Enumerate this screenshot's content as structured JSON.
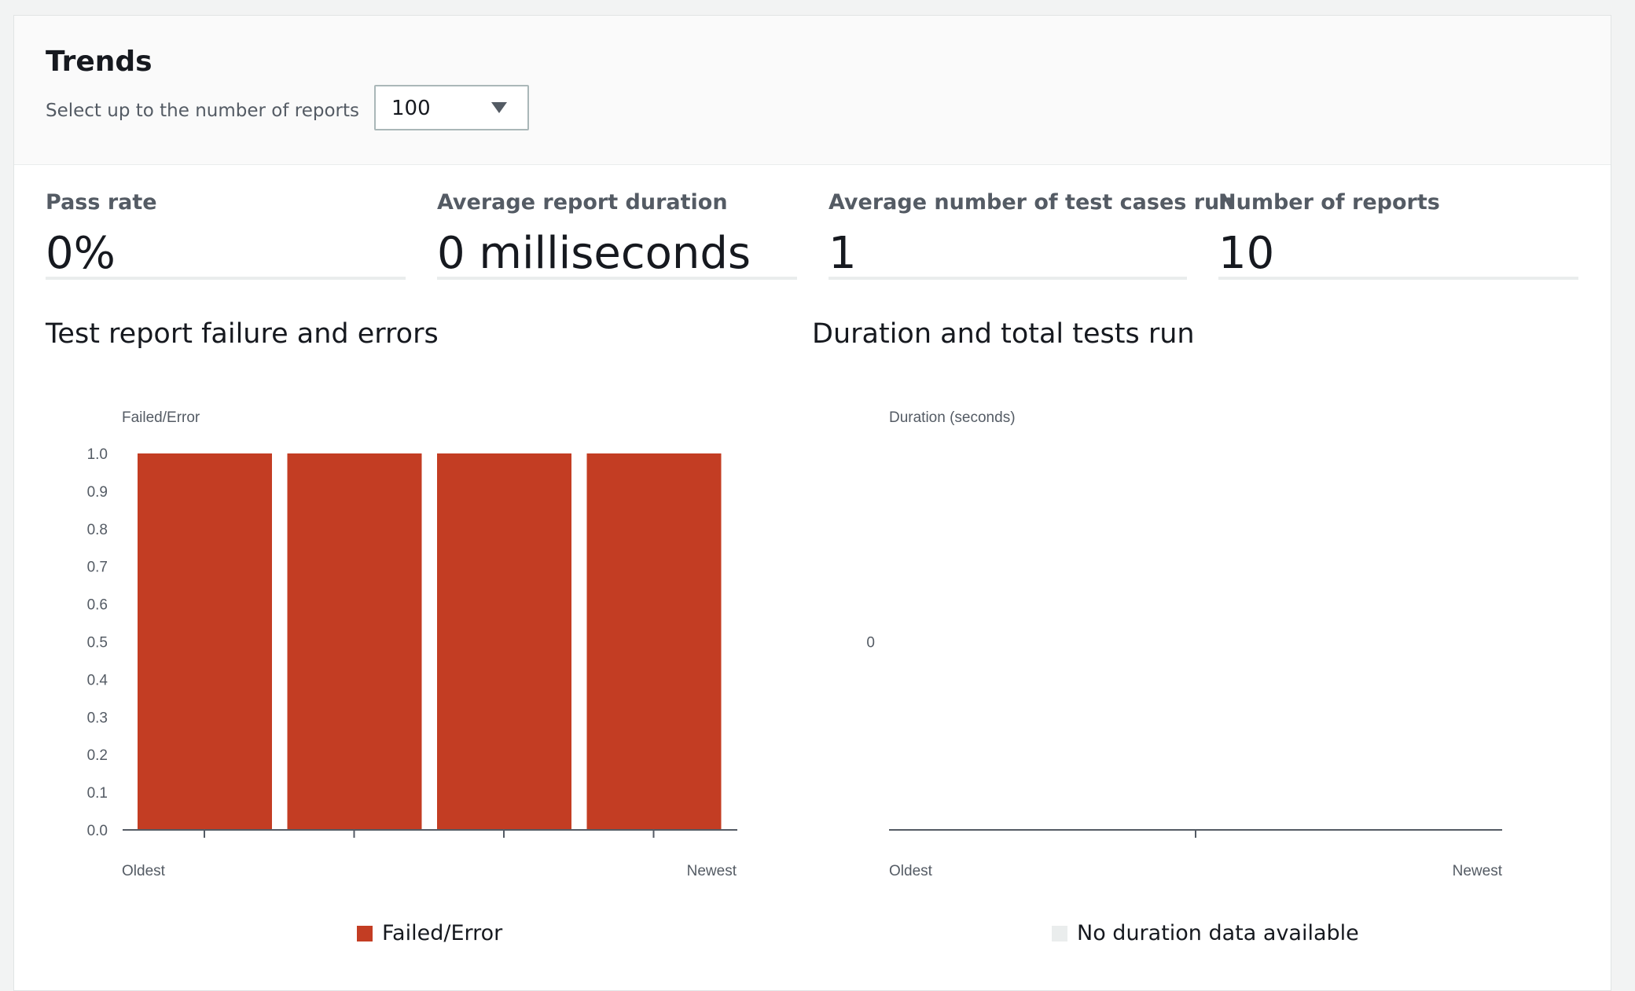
{
  "trends": {
    "title": "Trends",
    "select_label": "Select up to the number of reports",
    "select_value": "100"
  },
  "metrics": [
    {
      "label": "Pass rate",
      "value": "0%"
    },
    {
      "label": "Average report duration",
      "value": "0 milliseconds"
    },
    {
      "label": "Average number of test cases run",
      "value": "1"
    },
    {
      "label": "Number of reports",
      "value": "10"
    }
  ],
  "icons": {
    "select_caret": "caret-down-icon"
  },
  "colors": {
    "failed_error": "#c33d23",
    "no_data": "#eaeded"
  },
  "chart_data": [
    {
      "type": "bar",
      "title": "Test report failure and errors",
      "ylabel": "Failed/Error",
      "ylim": [
        0,
        1.0
      ],
      "yticks": [
        "0.0",
        "0.1",
        "0.2",
        "0.3",
        "0.4",
        "0.5",
        "0.6",
        "0.7",
        "0.8",
        "0.9",
        "1.0"
      ],
      "x_start_label": "Oldest",
      "x_end_label": "Newest",
      "series": [
        {
          "name": "Failed/Error",
          "color": "#c33d23",
          "values": [
            1.0,
            1.0,
            1.0,
            1.0
          ]
        }
      ],
      "legend": {
        "position": "bottom",
        "entries": [
          "Failed/Error"
        ]
      },
      "grid": false
    },
    {
      "type": "line",
      "title": "Duration and total tests run",
      "ylabel": "Duration (seconds)",
      "yticks": [
        "0"
      ],
      "x_start_label": "Oldest",
      "x_end_label": "Newest",
      "series": [],
      "legend": {
        "position": "bottom",
        "entries": [
          "No duration data available"
        ]
      },
      "grid": false
    }
  ]
}
